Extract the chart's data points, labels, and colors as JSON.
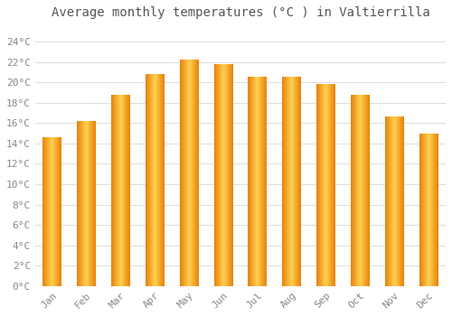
{
  "title": "Average monthly temperatures (°C ) in Valtierrilla",
  "months": [
    "Jan",
    "Feb",
    "Mar",
    "Apr",
    "May",
    "Jun",
    "Jul",
    "Aug",
    "Sep",
    "Oct",
    "Nov",
    "Dec"
  ],
  "values": [
    14.6,
    16.2,
    18.7,
    20.8,
    22.2,
    21.8,
    20.5,
    20.5,
    19.8,
    18.7,
    16.6,
    14.9
  ],
  "bar_color_edge": "#E8820A",
  "bar_color_center": "#FFD050",
  "ytick_labels": [
    "0°C",
    "2°C",
    "4°C",
    "6°C",
    "8°C",
    "10°C",
    "12°C",
    "14°C",
    "16°C",
    "18°C",
    "20°C",
    "22°C",
    "24°C"
  ],
  "ytick_values": [
    0,
    2,
    4,
    6,
    8,
    10,
    12,
    14,
    16,
    18,
    20,
    22,
    24
  ],
  "ylim": [
    0,
    25.5
  ],
  "background_color": "#FFFFFF",
  "plot_bg_color": "#FFFFFF",
  "grid_color": "#DDDDDD",
  "title_fontsize": 10,
  "tick_fontsize": 8,
  "bar_width": 0.55,
  "tick_color": "#888888",
  "title_color": "#555555"
}
